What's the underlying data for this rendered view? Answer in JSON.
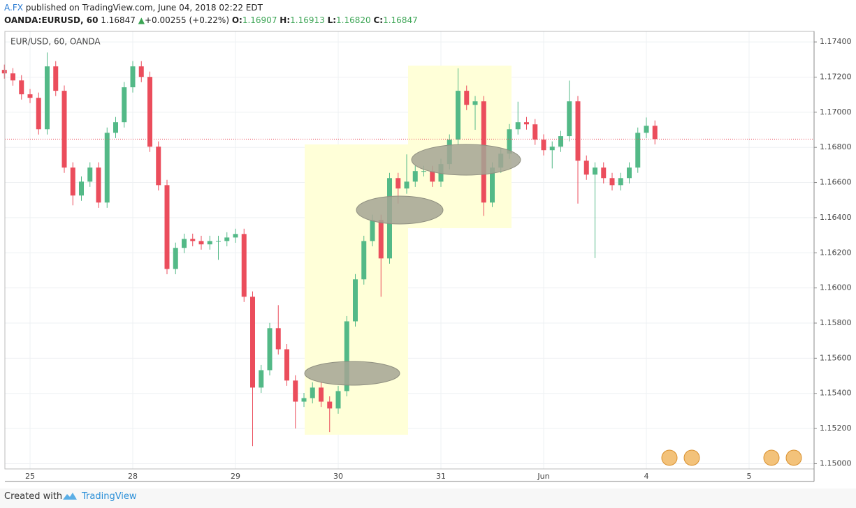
{
  "header": {
    "author": "A.FX",
    "published": "published on TradingView.com, June 04, 2018 02:22 EDT",
    "symbol": "OANDA:EURUSD, 60",
    "last": "1.16847",
    "change": "+0.00255 (+0.22%)",
    "o_label": "O:",
    "o": "1.16907",
    "h_label": "H:",
    "h": "1.16913",
    "l_label": "L:",
    "l": "1.16820",
    "c_label": "C:",
    "c": "1.16847"
  },
  "chart_data": {
    "type": "candlestick",
    "legend": "EUR/USD, 60, OANDA",
    "up_color": "#53b987",
    "down_color": "#eb4d5c",
    "grid": true,
    "ylim": [
      1.1497,
      1.1746
    ],
    "yticks": [
      {
        "value": 1.15,
        "label": "1.15000"
      },
      {
        "value": 1.152,
        "label": "1.15200"
      },
      {
        "value": 1.154,
        "label": "1.15400"
      },
      {
        "value": 1.156,
        "label": "1.15600"
      },
      {
        "value": 1.158,
        "label": "1.15800"
      },
      {
        "value": 1.16,
        "label": "1.16000"
      },
      {
        "value": 1.162,
        "label": "1.16200"
      },
      {
        "value": 1.164,
        "label": "1.16400"
      },
      {
        "value": 1.166,
        "label": "1.16600"
      },
      {
        "value": 1.168,
        "label": "1.16800"
      },
      {
        "value": 1.17,
        "label": "1.17000"
      },
      {
        "value": 1.172,
        "label": "1.17200"
      },
      {
        "value": 1.174,
        "label": "1.17400"
      }
    ],
    "categories": [
      null,
      null,
      null,
      "25",
      null,
      null,
      null,
      null,
      null,
      null,
      null,
      null,
      null,
      null,
      null,
      "28",
      null,
      null,
      null,
      null,
      null,
      null,
      null,
      null,
      null,
      null,
      null,
      "29",
      null,
      null,
      null,
      null,
      null,
      null,
      null,
      null,
      null,
      null,
      null,
      "30",
      null,
      null,
      null,
      null,
      null,
      null,
      null,
      null,
      null,
      null,
      null,
      "31",
      null,
      null,
      null,
      null,
      null,
      null,
      null,
      null,
      null,
      null,
      null,
      "Jun",
      null,
      null,
      null,
      null,
      null,
      null,
      null,
      null,
      null,
      null,
      null,
      "4",
      null,
      null,
      null,
      null,
      null,
      null,
      null,
      null,
      null,
      null,
      null,
      "5"
    ],
    "open": [
      1.17241,
      1.17221,
      1.17181,
      1.17102,
      1.17082,
      1.16903,
      1.17261,
      1.17122,
      1.16685,
      1.16526,
      1.16605,
      1.16685,
      1.16486,
      1.16883,
      1.16943,
      1.17142,
      1.17261,
      1.17201,
      1.16804,
      1.16585,
      1.16108,
      1.16228,
      1.16279,
      1.16267,
      1.16248,
      1.16267,
      1.16267,
      1.16287,
      1.16307,
      1.1595,
      1.15433,
      1.15532,
      1.15771,
      1.15651,
      1.15473,
      1.15353,
      1.15373,
      1.15433,
      1.15353,
      1.15314,
      1.15413,
      1.1581,
      1.16049,
      1.16267,
      1.16387,
      1.16168,
      1.16625,
      1.16566,
      1.16605,
      1.16665,
      1.16665,
      1.16605,
      1.16705,
      1.16844,
      1.17122,
      1.17042,
      1.17062,
      1.16486,
      1.16685,
      1.16764,
      1.16903,
      1.16943,
      1.16931,
      1.16844,
      1.16784,
      1.16804,
      1.16864,
      1.17062,
      1.16724,
      1.16645,
      1.16685,
      1.16625,
      1.16585,
      1.16625,
      1.16685,
      1.16883,
      1.16923,
      null,
      null,
      null,
      null,
      null,
      null,
      null,
      null,
      null,
      null,
      null
    ],
    "high": [
      1.17271,
      1.17251,
      1.17211,
      1.17132,
      1.17112,
      1.1734,
      1.17291,
      1.17152,
      1.16715,
      1.16635,
      1.16715,
      1.16715,
      1.16913,
      1.16973,
      1.17172,
      1.17291,
      1.17291,
      1.17231,
      1.16834,
      1.16615,
      1.16258,
      1.16309,
      1.16309,
      1.16297,
      1.16297,
      1.16297,
      1.16317,
      1.16337,
      1.16337,
      1.1598,
      1.15562,
      1.15801,
      1.15902,
      1.15681,
      1.15503,
      1.15403,
      1.15463,
      1.15463,
      1.15383,
      1.15443,
      1.1584,
      1.16079,
      1.16297,
      1.16417,
      1.16417,
      1.16655,
      1.16655,
      1.1676,
      1.16695,
      1.16695,
      1.16695,
      1.16735,
      1.16874,
      1.1725,
      1.17152,
      1.17092,
      1.17092,
      1.16715,
      1.16794,
      1.16933,
      1.1706,
      1.16973,
      1.16961,
      1.16874,
      1.16834,
      1.16894,
      1.1718,
      1.17092,
      1.16754,
      1.16715,
      1.16715,
      1.16655,
      1.16655,
      1.16715,
      1.16913,
      1.1697,
      1.16953,
      null,
      null,
      null,
      null,
      null,
      null,
      null,
      null,
      null,
      null,
      null
    ],
    "low": [
      1.17191,
      1.17151,
      1.17072,
      1.17052,
      1.16873,
      1.16873,
      1.17092,
      1.16655,
      1.1647,
      1.16496,
      1.16575,
      1.16456,
      1.16456,
      1.16853,
      1.16913,
      1.17112,
      1.17171,
      1.16774,
      1.16555,
      1.16078,
      1.16078,
      1.16198,
      1.16237,
      1.16218,
      1.16218,
      1.1616,
      1.16237,
      1.16257,
      1.1592,
      1.151,
      1.15403,
      1.15502,
      1.15621,
      1.15443,
      1.152,
      1.15323,
      1.15343,
      1.15323,
      1.1518,
      1.15284,
      1.15383,
      1.1578,
      1.16019,
      1.16237,
      1.1595,
      1.16138,
      1.1648,
      1.16536,
      1.16575,
      1.16635,
      1.16575,
      1.16575,
      1.16675,
      1.16814,
      1.17012,
      1.169,
      1.1641,
      1.1646,
      1.16655,
      1.16734,
      1.16873,
      1.16901,
      1.16814,
      1.16754,
      1.1668,
      1.16774,
      1.16834,
      1.1648,
      1.16615,
      1.1617,
      1.16595,
      1.16555,
      1.16555,
      1.16595,
      1.16655,
      1.16853,
      1.16817,
      null,
      null,
      null,
      null,
      null,
      null,
      null,
      null,
      null,
      null,
      null
    ],
    "close": [
      1.17221,
      1.17181,
      1.17102,
      1.17082,
      1.16903,
      1.17261,
      1.17122,
      1.16685,
      1.16526,
      1.16605,
      1.16685,
      1.16486,
      1.16883,
      1.16943,
      1.17142,
      1.17261,
      1.17201,
      1.16804,
      1.16585,
      1.16108,
      1.16228,
      1.16279,
      1.16267,
      1.16248,
      1.16267,
      1.16267,
      1.16287,
      1.16307,
      1.1595,
      1.15433,
      1.15532,
      1.15771,
      1.15651,
      1.15473,
      1.15353,
      1.15373,
      1.15433,
      1.15353,
      1.15314,
      1.15413,
      1.1581,
      1.16049,
      1.16267,
      1.16387,
      1.16168,
      1.16625,
      1.16566,
      1.16605,
      1.16665,
      1.16665,
      1.16605,
      1.16705,
      1.16844,
      1.17122,
      1.17042,
      1.17062,
      1.16486,
      1.16685,
      1.16764,
      1.16903,
      1.16943,
      1.16931,
      1.16844,
      1.16784,
      1.16804,
      1.16864,
      1.17062,
      1.16724,
      1.16645,
      1.16685,
      1.16625,
      1.16585,
      1.16625,
      1.16685,
      1.16883,
      1.16923,
      1.16847,
      null,
      null,
      null,
      null,
      null,
      null,
      null,
      null,
      null,
      null,
      null
    ]
  },
  "footer": {
    "created": "Created with",
    "brand": "TradingView"
  }
}
